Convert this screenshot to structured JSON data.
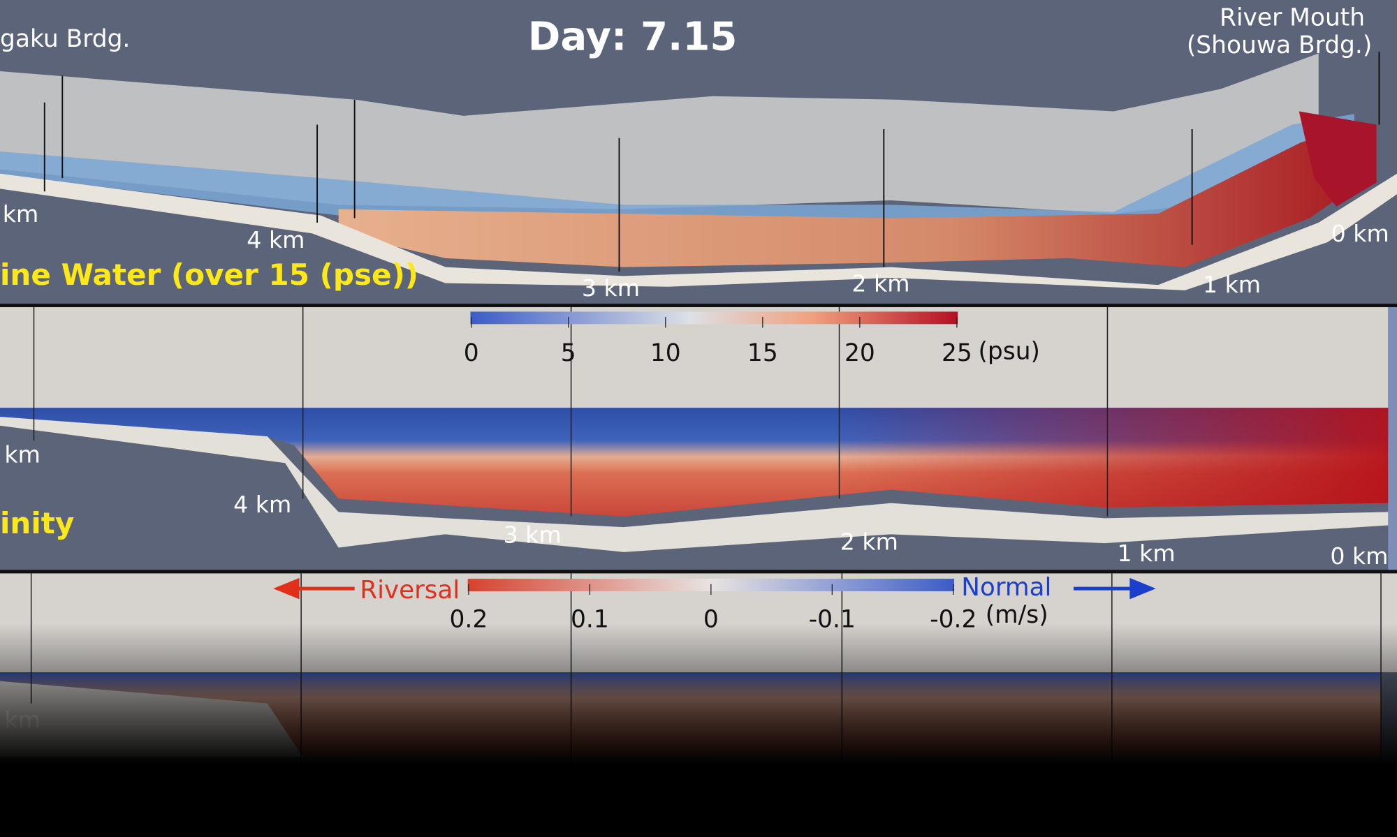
{
  "title": "Day: 7.15",
  "panel_3d": {
    "upstream_label": "gaku Brdg.",
    "mouth_label": [
      "River Mouth",
      "(Shouwa Brdg.)"
    ],
    "km_labels": [
      "km",
      "4 km",
      "3 km",
      "2 km",
      "1 km",
      "0 km"
    ],
    "caption": "ine Water (over 15 (pse))"
  },
  "panel_salinity": {
    "colorbar_ticks": [
      "0",
      "5",
      "10",
      "15",
      "20",
      "25"
    ],
    "unit": "(psu)",
    "km_labels": [
      "km",
      "4 km",
      "3 km",
      "2 km",
      "1 km",
      "0 km"
    ],
    "caption": "inity"
  },
  "panel_velocity": {
    "left_label": "Riversal",
    "right_label": "Normal",
    "colorbar_ticks": [
      "0.2",
      "0.1",
      "0",
      "-0.1",
      "-0.2"
    ],
    "unit": "(m/s)",
    "km_labels": [
      "km"
    ]
  }
}
